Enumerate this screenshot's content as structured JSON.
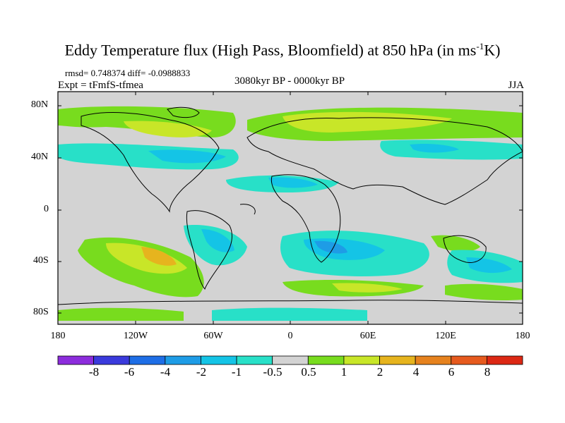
{
  "map": {
    "title_main": "Eddy Temperature flux (High Pass, Bloomfield) at 850 hPa (in ms",
    "title_sup": "-1",
    "title_end": "K)",
    "stats": "rmsd= 0.748374 diff= -0.0988833",
    "experiment": "Expt = tFmfS-tfmea",
    "period": "3080kyr BP - 0000kyr BP",
    "season": "JJA",
    "lat_labels": [
      "80N",
      "40N",
      "0",
      "40S",
      "80S"
    ],
    "lon_labels": [
      "180",
      "120W",
      "60W",
      "0",
      "60E",
      "120E",
      "180"
    ],
    "background_color": "#d3d3d3",
    "land_outline_color": "#000000"
  },
  "colorbar": {
    "labels": [
      "-8",
      "-6",
      "-4",
      "-2",
      "-1",
      "-0.5",
      "0.5",
      "1",
      "2",
      "4",
      "6",
      "8"
    ],
    "colors": [
      "#8c2cdc",
      "#3a3adc",
      "#1e6ee6",
      "#1e9ce6",
      "#14c4e6",
      "#28e0c8",
      "#d3d3d3",
      "#78dc1e",
      "#c8e628",
      "#e6b41e",
      "#e6821e",
      "#e65a1e",
      "#dc2814"
    ]
  }
}
